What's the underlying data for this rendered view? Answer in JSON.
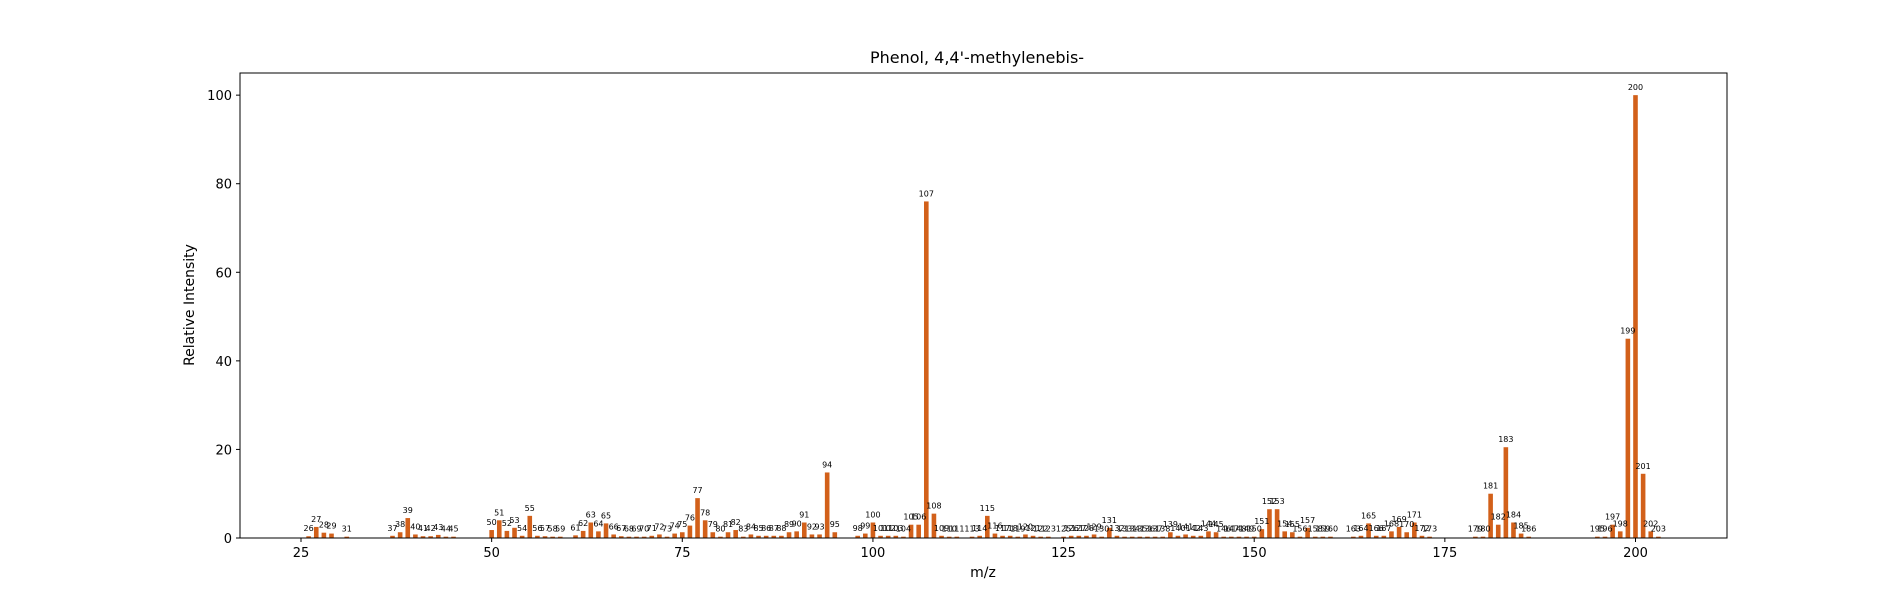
{
  "chart_data": {
    "type": "bar",
    "title": "Phenol, 4,4'-methylenebis-",
    "xlabel": "m/z",
    "ylabel": "Relative Intensity",
    "xlim": [
      17,
      212
    ],
    "ylim": [
      0,
      105
    ],
    "xticks": [
      25,
      50,
      75,
      100,
      125,
      150,
      175,
      200
    ],
    "yticks": [
      0,
      20,
      40,
      60,
      80,
      100
    ],
    "bar_color": "#d2601a",
    "grid": false,
    "legend": "none",
    "peaks": [
      {
        "mz": 26,
        "intensity": 0.4
      },
      {
        "mz": 27,
        "intensity": 2.5
      },
      {
        "mz": 28,
        "intensity": 1.2
      },
      {
        "mz": 29,
        "intensity": 1.0
      },
      {
        "mz": 31,
        "intensity": 0.3
      },
      {
        "mz": 37,
        "intensity": 0.5
      },
      {
        "mz": 38,
        "intensity": 1.3
      },
      {
        "mz": 39,
        "intensity": 4.5
      },
      {
        "mz": 40,
        "intensity": 0.8
      },
      {
        "mz": 41,
        "intensity": 0.4
      },
      {
        "mz": 42,
        "intensity": 0.4
      },
      {
        "mz": 43,
        "intensity": 0.7
      },
      {
        "mz": 44,
        "intensity": 0.3
      },
      {
        "mz": 45,
        "intensity": 0.3
      },
      {
        "mz": 50,
        "intensity": 1.8
      },
      {
        "mz": 51,
        "intensity": 4.0
      },
      {
        "mz": 52,
        "intensity": 1.6
      },
      {
        "mz": 53,
        "intensity": 2.3
      },
      {
        "mz": 54,
        "intensity": 0.5
      },
      {
        "mz": 55,
        "intensity": 5.0
      },
      {
        "mz": 56,
        "intensity": 0.5
      },
      {
        "mz": 57,
        "intensity": 0.4
      },
      {
        "mz": 58,
        "intensity": 0.3
      },
      {
        "mz": 59,
        "intensity": 0.3
      },
      {
        "mz": 61,
        "intensity": 0.6
      },
      {
        "mz": 62,
        "intensity": 1.6
      },
      {
        "mz": 63,
        "intensity": 3.5
      },
      {
        "mz": 64,
        "intensity": 1.5
      },
      {
        "mz": 65,
        "intensity": 3.3
      },
      {
        "mz": 66,
        "intensity": 0.8
      },
      {
        "mz": 67,
        "intensity": 0.4
      },
      {
        "mz": 68,
        "intensity": 0.3
      },
      {
        "mz": 69,
        "intensity": 0.3
      },
      {
        "mz": 70,
        "intensity": 0.3
      },
      {
        "mz": 71,
        "intensity": 0.5
      },
      {
        "mz": 72,
        "intensity": 0.8
      },
      {
        "mz": 73,
        "intensity": 0.3
      },
      {
        "mz": 74,
        "intensity": 1.0
      },
      {
        "mz": 75,
        "intensity": 1.3
      },
      {
        "mz": 76,
        "intensity": 2.8
      },
      {
        "mz": 77,
        "intensity": 9.0
      },
      {
        "mz": 78,
        "intensity": 4.0
      },
      {
        "mz": 79,
        "intensity": 1.3
      },
      {
        "mz": 80,
        "intensity": 0.3
      },
      {
        "mz": 81,
        "intensity": 1.3
      },
      {
        "mz": 82,
        "intensity": 1.8
      },
      {
        "mz": 83,
        "intensity": 0.3
      },
      {
        "mz": 84,
        "intensity": 0.8
      },
      {
        "mz": 85,
        "intensity": 0.5
      },
      {
        "mz": 86,
        "intensity": 0.5
      },
      {
        "mz": 87,
        "intensity": 0.5
      },
      {
        "mz": 88,
        "intensity": 0.5
      },
      {
        "mz": 89,
        "intensity": 1.3
      },
      {
        "mz": 90,
        "intensity": 1.5
      },
      {
        "mz": 91,
        "intensity": 3.5
      },
      {
        "mz": 92,
        "intensity": 0.8
      },
      {
        "mz": 93,
        "intensity": 0.8
      },
      {
        "mz": 94,
        "intensity": 14.8
      },
      {
        "mz": 95,
        "intensity": 1.3
      },
      {
        "mz": 98,
        "intensity": 0.5
      },
      {
        "mz": 99,
        "intensity": 1.0
      },
      {
        "mz": 100,
        "intensity": 3.5
      },
      {
        "mz": 101,
        "intensity": 0.5
      },
      {
        "mz": 102,
        "intensity": 0.5
      },
      {
        "mz": 103,
        "intensity": 0.5
      },
      {
        "mz": 104,
        "intensity": 0.3
      },
      {
        "mz": 105,
        "intensity": 3.0
      },
      {
        "mz": 106,
        "intensity": 3.0
      },
      {
        "mz": 107,
        "intensity": 76.0
      },
      {
        "mz": 108,
        "intensity": 5.5
      },
      {
        "mz": 109,
        "intensity": 0.5
      },
      {
        "mz": 110,
        "intensity": 0.3
      },
      {
        "mz": 111,
        "intensity": 0.3
      },
      {
        "mz": 113,
        "intensity": 0.3
      },
      {
        "mz": 114,
        "intensity": 0.5
      },
      {
        "mz": 115,
        "intensity": 5.0
      },
      {
        "mz": 116,
        "intensity": 1.0
      },
      {
        "mz": 117,
        "intensity": 0.5
      },
      {
        "mz": 118,
        "intensity": 0.5
      },
      {
        "mz": 119,
        "intensity": 0.3
      },
      {
        "mz": 120,
        "intensity": 0.8
      },
      {
        "mz": 121,
        "intensity": 0.5
      },
      {
        "mz": 122,
        "intensity": 0.3
      },
      {
        "mz": 123,
        "intensity": 0.3
      },
      {
        "mz": 125,
        "intensity": 0.3
      },
      {
        "mz": 126,
        "intensity": 0.5
      },
      {
        "mz": 127,
        "intensity": 0.5
      },
      {
        "mz": 128,
        "intensity": 0.5
      },
      {
        "mz": 129,
        "intensity": 0.8
      },
      {
        "mz": 130,
        "intensity": 0.3
      },
      {
        "mz": 131,
        "intensity": 2.3
      },
      {
        "mz": 132,
        "intensity": 0.5
      },
      {
        "mz": 133,
        "intensity": 0.3
      },
      {
        "mz": 134,
        "intensity": 0.3
      },
      {
        "mz": 135,
        "intensity": 0.3
      },
      {
        "mz": 136,
        "intensity": 0.3
      },
      {
        "mz": 137,
        "intensity": 0.3
      },
      {
        "mz": 138,
        "intensity": 0.3
      },
      {
        "mz": 139,
        "intensity": 1.3
      },
      {
        "mz": 140,
        "intensity": 0.5
      },
      {
        "mz": 141,
        "intensity": 0.8
      },
      {
        "mz": 142,
        "intensity": 0.5
      },
      {
        "mz": 143,
        "intensity": 0.5
      },
      {
        "mz": 144,
        "intensity": 1.5
      },
      {
        "mz": 145,
        "intensity": 1.3
      },
      {
        "mz": 146,
        "intensity": 0.3
      },
      {
        "mz": 147,
        "intensity": 0.3
      },
      {
        "mz": 148,
        "intensity": 0.3
      },
      {
        "mz": 149,
        "intensity": 0.3
      },
      {
        "mz": 150,
        "intensity": 0.3
      },
      {
        "mz": 151,
        "intensity": 2.0
      },
      {
        "mz": 152,
        "intensity": 6.5
      },
      {
        "mz": 153,
        "intensity": 6.5
      },
      {
        "mz": 154,
        "intensity": 1.5
      },
      {
        "mz": 155,
        "intensity": 1.3
      },
      {
        "mz": 156,
        "intensity": 0.3
      },
      {
        "mz": 157,
        "intensity": 2.3
      },
      {
        "mz": 158,
        "intensity": 0.3
      },
      {
        "mz": 159,
        "intensity": 0.3
      },
      {
        "mz": 160,
        "intensity": 0.3
      },
      {
        "mz": 163,
        "intensity": 0.3
      },
      {
        "mz": 164,
        "intensity": 0.5
      },
      {
        "mz": 165,
        "intensity": 3.3
      },
      {
        "mz": 166,
        "intensity": 0.5
      },
      {
        "mz": 167,
        "intensity": 0.5
      },
      {
        "mz": 168,
        "intensity": 1.5
      },
      {
        "mz": 169,
        "intensity": 2.5
      },
      {
        "mz": 170,
        "intensity": 1.3
      },
      {
        "mz": 171,
        "intensity": 3.5
      },
      {
        "mz": 172,
        "intensity": 0.5
      },
      {
        "mz": 173,
        "intensity": 0.3
      },
      {
        "mz": 179,
        "intensity": 0.3
      },
      {
        "mz": 180,
        "intensity": 0.3
      },
      {
        "mz": 181,
        "intensity": 10.0
      },
      {
        "mz": 182,
        "intensity": 3.0
      },
      {
        "mz": 183,
        "intensity": 20.5
      },
      {
        "mz": 184,
        "intensity": 3.5
      },
      {
        "mz": 185,
        "intensity": 1.0
      },
      {
        "mz": 186,
        "intensity": 0.3
      },
      {
        "mz": 195,
        "intensity": 0.3
      },
      {
        "mz": 196,
        "intensity": 0.3
      },
      {
        "mz": 197,
        "intensity": 3.0
      },
      {
        "mz": 198,
        "intensity": 1.5
      },
      {
        "mz": 199,
        "intensity": 45.0
      },
      {
        "mz": 200,
        "intensity": 100.0
      },
      {
        "mz": 201,
        "intensity": 14.5
      },
      {
        "mz": 202,
        "intensity": 1.5
      },
      {
        "mz": 203,
        "intensity": 0.3
      }
    ]
  }
}
